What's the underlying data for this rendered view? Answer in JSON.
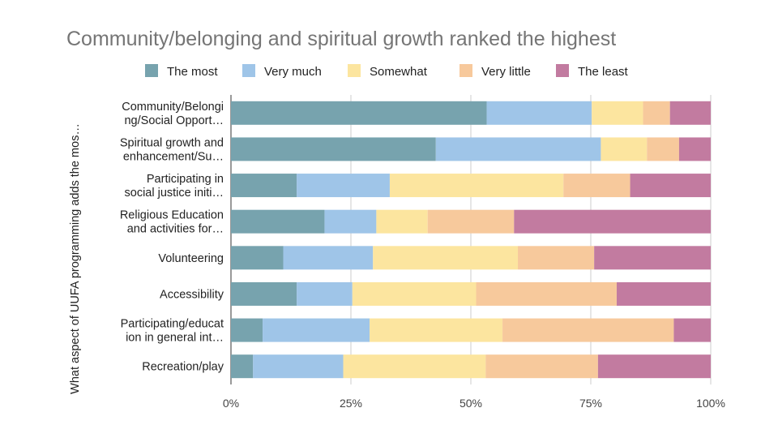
{
  "chart_data": {
    "type": "bar",
    "orientation": "horizontal",
    "stacked": "percent",
    "title": "Community/belonging and spiritual growth ranked the highest",
    "ylabel": "What aspect of UUFA programming adds the mos…",
    "xlabel": "",
    "xlim": [
      0,
      100
    ],
    "x_ticks": [
      "0%",
      "25%",
      "50%",
      "75%",
      "100%"
    ],
    "legend_position": "top",
    "grid": true,
    "categories": [
      [
        "Community/Belongi",
        "ng/Social Opport…"
      ],
      [
        "Spiritual growth and",
        "enhancement/Su…"
      ],
      [
        "Participating in",
        "social justice initi…"
      ],
      [
        "Religious Education",
        "and activities for…"
      ],
      [
        "Volunteering"
      ],
      [
        "Accessibility"
      ],
      [
        "Participating/educat",
        "ion in general int…"
      ],
      [
        "Recreation/play"
      ]
    ],
    "series": [
      {
        "name": "The most",
        "color": "#77A3AE",
        "values": [
          53.3,
          42.7,
          13.7,
          19.5,
          10.9,
          13.7,
          6.6,
          4.6
        ]
      },
      {
        "name": "Very much",
        "color": "#9FC5E8",
        "values": [
          21.9,
          34.4,
          19.4,
          10.8,
          18.7,
          11.6,
          22.3,
          18.8
        ]
      },
      {
        "name": "Somewhat",
        "color": "#FCE59F",
        "values": [
          10.7,
          9.6,
          36.2,
          10.7,
          30.2,
          25.8,
          27.7,
          29.7
        ]
      },
      {
        "name": "Very little",
        "color": "#F7C99C",
        "values": [
          5.6,
          6.7,
          13.9,
          18.0,
          15.9,
          29.3,
          35.7,
          23.4
        ]
      },
      {
        "name": "The least",
        "color": "#C27BA0",
        "values": [
          8.5,
          6.6,
          16.8,
          41.0,
          24.3,
          19.6,
          7.7,
          23.5
        ]
      }
    ]
  }
}
